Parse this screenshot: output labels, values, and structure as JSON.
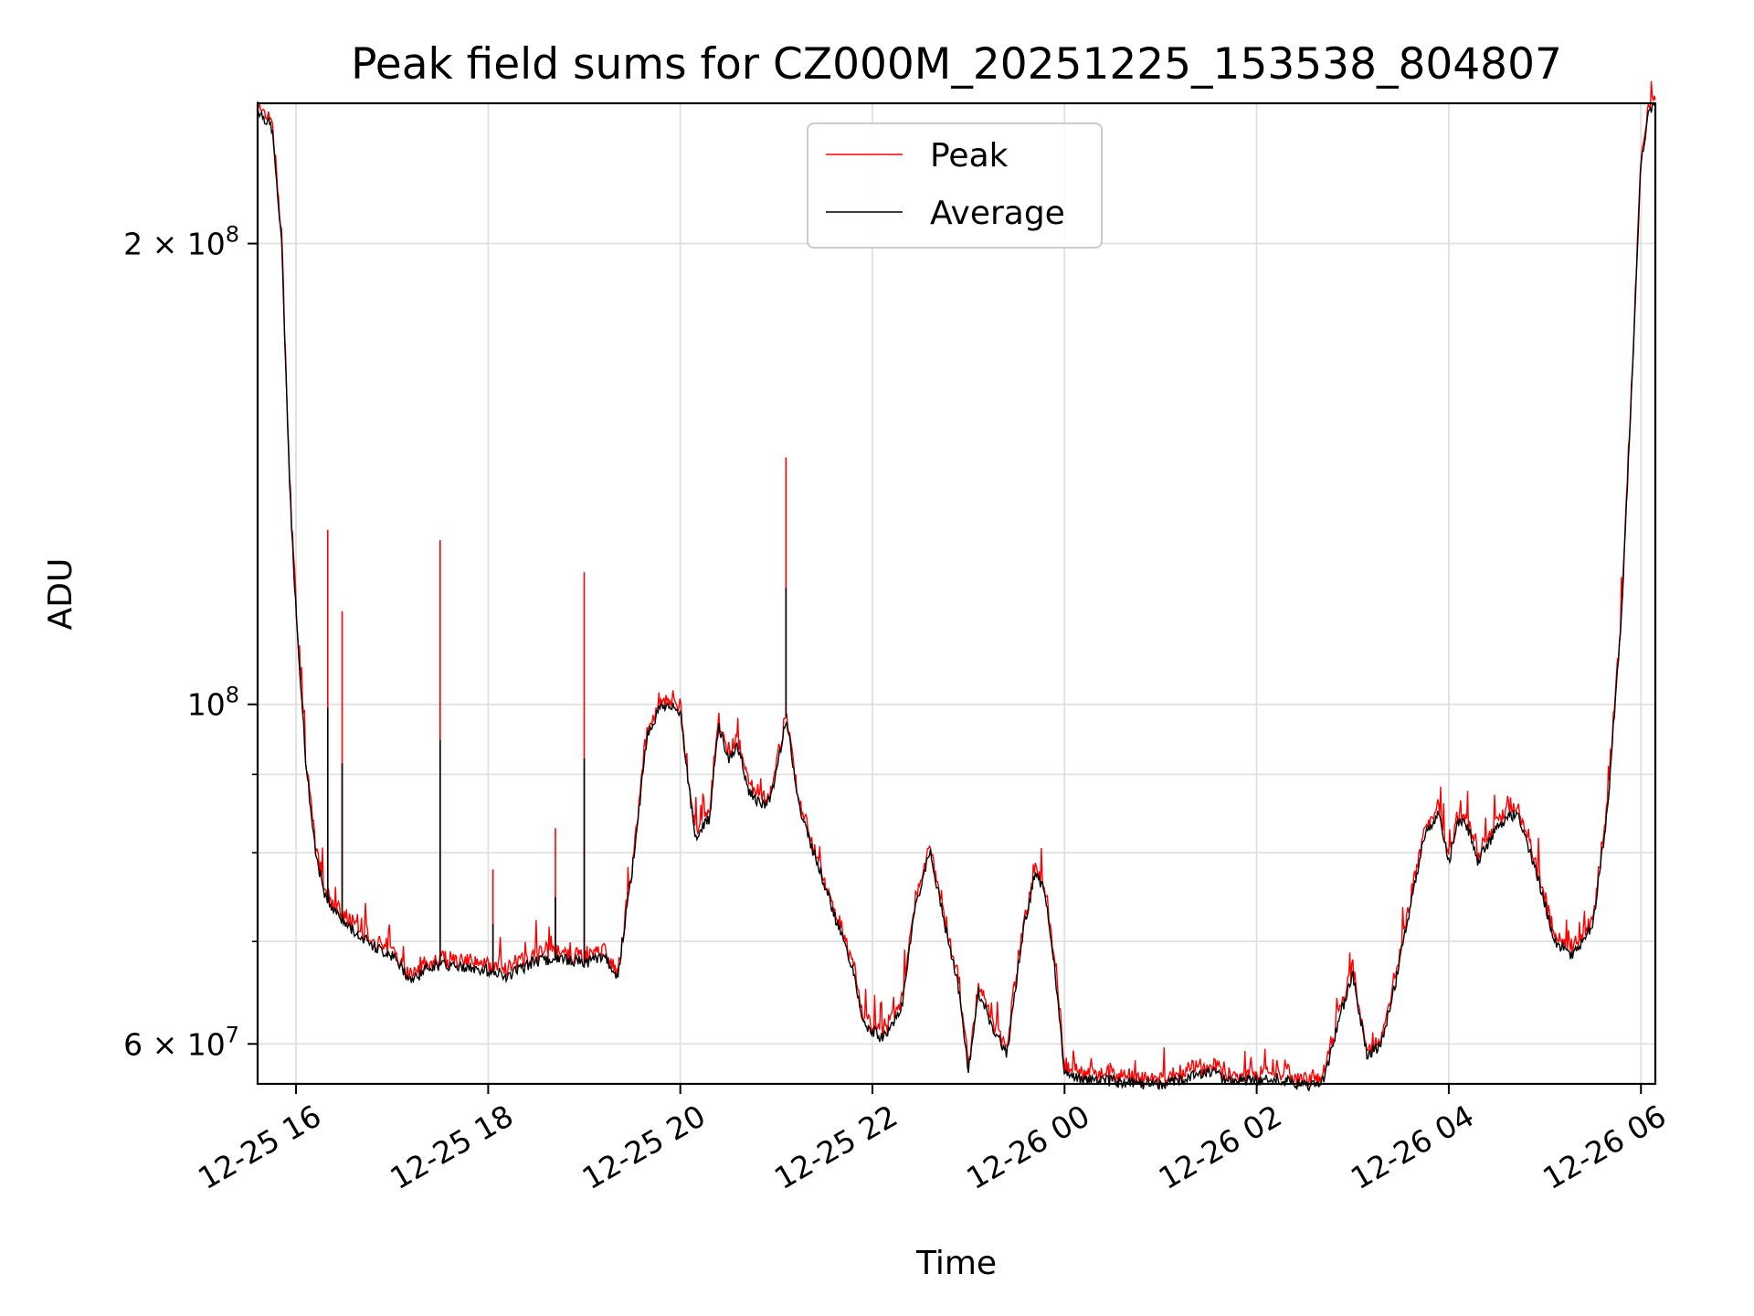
{
  "chart_data": {
    "type": "line",
    "title": "Peak field sums for CZ000M_20251225_153538_804807",
    "xlabel": "Time",
    "ylabel": "ADU",
    "yscale": "log",
    "ylim": [
      56500000,
      247000000
    ],
    "xlim_hours": [
      15.6,
      30.15
    ],
    "x_unit": "hours since 2025-12-25 00:00",
    "grid": true,
    "legend_position": "upper-center",
    "x_ticks": [
      {
        "value": 16,
        "label": "12-25 16"
      },
      {
        "value": 18,
        "label": "12-25 18"
      },
      {
        "value": 20,
        "label": "12-25 20"
      },
      {
        "value": 22,
        "label": "12-25 22"
      },
      {
        "value": 24,
        "label": "12-26 00"
      },
      {
        "value": 26,
        "label": "12-26 02"
      },
      {
        "value": 28,
        "label": "12-26 04"
      },
      {
        "value": 30,
        "label": "12-26 06"
      }
    ],
    "y_major_ticks": [
      {
        "value": 60000000,
        "base": "6 × 10",
        "exp": "7"
      },
      {
        "value": 100000000,
        "base": "10",
        "exp": "8"
      },
      {
        "value": 200000000,
        "base": "2 × 10",
        "exp": "8"
      }
    ],
    "y_minor_ticks": [
      70000000,
      80000000,
      90000000
    ],
    "series": [
      {
        "name": "Peak",
        "color": "#ff0000"
      },
      {
        "name": "Average",
        "color": "#000000"
      }
    ],
    "average_curve": [
      [
        15.6,
        245000000
      ],
      [
        15.75,
        238000000
      ],
      [
        15.85,
        200000000
      ],
      [
        15.93,
        140000000
      ],
      [
        16.0,
        115000000
      ],
      [
        16.1,
        92000000
      ],
      [
        16.2,
        80000000
      ],
      [
        16.3,
        75000000
      ],
      [
        16.5,
        72000000
      ],
      [
        16.8,
        69500000
      ],
      [
        17.0,
        68500000
      ],
      [
        17.2,
        66000000
      ],
      [
        17.4,
        67500000
      ],
      [
        17.6,
        67500000
      ],
      [
        18.0,
        67000000
      ],
      [
        18.2,
        66500000
      ],
      [
        18.5,
        68000000
      ],
      [
        18.8,
        68200000
      ],
      [
        19.0,
        67800000
      ],
      [
        19.2,
        68500000
      ],
      [
        19.35,
        66500000
      ],
      [
        19.5,
        78000000
      ],
      [
        19.65,
        95000000
      ],
      [
        19.8,
        100000000
      ],
      [
        20.0,
        99000000
      ],
      [
        20.05,
        93000000
      ],
      [
        20.15,
        82000000
      ],
      [
        20.3,
        84000000
      ],
      [
        20.4,
        97000000
      ],
      [
        20.5,
        92000000
      ],
      [
        20.6,
        94000000
      ],
      [
        20.7,
        88000000
      ],
      [
        20.85,
        86000000
      ],
      [
        20.95,
        87000000
      ],
      [
        21.1,
        98000000
      ],
      [
        21.25,
        85000000
      ],
      [
        21.45,
        78000000
      ],
      [
        21.6,
        73000000
      ],
      [
        21.8,
        67000000
      ],
      [
        21.9,
        62000000
      ],
      [
        22.1,
        60500000
      ],
      [
        22.3,
        63000000
      ],
      [
        22.45,
        74000000
      ],
      [
        22.6,
        80000000
      ],
      [
        22.75,
        72000000
      ],
      [
        22.9,
        65000000
      ],
      [
        23.0,
        57500000
      ],
      [
        23.1,
        65000000
      ],
      [
        23.25,
        61500000
      ],
      [
        23.4,
        59000000
      ],
      [
        23.55,
        70000000
      ],
      [
        23.7,
        78000000
      ],
      [
        23.8,
        75000000
      ],
      [
        23.9,
        67000000
      ],
      [
        24.0,
        57500000
      ],
      [
        24.2,
        56800000
      ],
      [
        24.5,
        56700000
      ],
      [
        24.8,
        56500000
      ],
      [
        25.0,
        56500000
      ],
      [
        25.3,
        57000000
      ],
      [
        25.5,
        57700000
      ],
      [
        25.7,
        56800000
      ],
      [
        26.0,
        56800000
      ],
      [
        26.2,
        57000000
      ],
      [
        26.5,
        56300000
      ],
      [
        26.7,
        56800000
      ],
      [
        26.85,
        62000000
      ],
      [
        27.0,
        66500000
      ],
      [
        27.15,
        59000000
      ],
      [
        27.3,
        60000000
      ],
      [
        27.45,
        66000000
      ],
      [
        27.6,
        74000000
      ],
      [
        27.75,
        82000000
      ],
      [
        27.9,
        85000000
      ],
      [
        28.0,
        79000000
      ],
      [
        28.1,
        84000000
      ],
      [
        28.2,
        83000000
      ],
      [
        28.3,
        79000000
      ],
      [
        28.5,
        83000000
      ],
      [
        28.7,
        85000000
      ],
      [
        28.8,
        82000000
      ],
      [
        28.95,
        76000000
      ],
      [
        29.1,
        70000000
      ],
      [
        29.3,
        68500000
      ],
      [
        29.5,
        72000000
      ],
      [
        29.65,
        85000000
      ],
      [
        29.8,
        115000000
      ],
      [
        29.92,
        170000000
      ],
      [
        30.0,
        225000000
      ],
      [
        30.07,
        242000000
      ],
      [
        30.15,
        246000000
      ]
    ],
    "annotations_peak_spikes": [
      [
        16.33,
        130000000
      ],
      [
        16.48,
        115000000
      ],
      [
        17.5,
        128000000
      ],
      [
        18.05,
        78000000
      ],
      [
        18.7,
        83000000
      ],
      [
        19.0,
        122000000
      ],
      [
        21.1,
        145000000
      ]
    ]
  }
}
